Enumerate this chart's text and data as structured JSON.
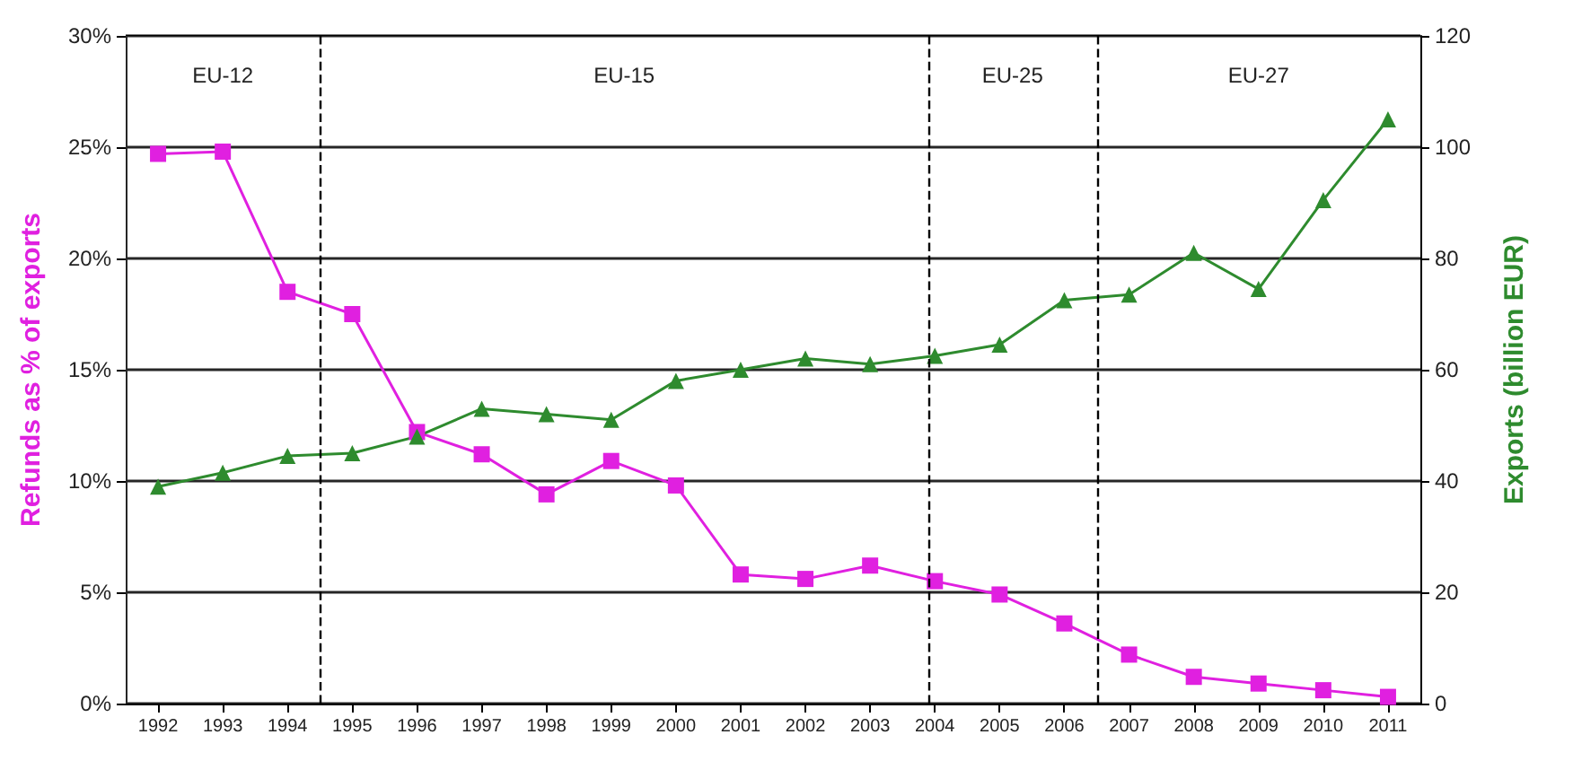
{
  "chart_data": {
    "type": "line",
    "ylabel": "Refunds as % of exports",
    "y2label": "Exports (billion EUR)",
    "x": [
      1992,
      1993,
      1994,
      1995,
      1996,
      1997,
      1998,
      1999,
      2000,
      2001,
      2002,
      2003,
      2004,
      2005,
      2006,
      2007,
      2008,
      2009,
      2010,
      2011
    ],
    "xlim": [
      1991.5,
      2011.5
    ],
    "xticks": [
      1992,
      1993,
      1994,
      1995,
      1996,
      1997,
      1998,
      1999,
      2000,
      2001,
      2002,
      2003,
      2004,
      2005,
      2006,
      2007,
      2008,
      2009,
      2010,
      2011
    ],
    "ylim": [
      0,
      30
    ],
    "yticks": [
      {
        "value": 0,
        "label": "0%"
      },
      {
        "value": 5,
        "label": "5%"
      },
      {
        "value": 10,
        "label": "10%"
      },
      {
        "value": 15,
        "label": "15%"
      },
      {
        "value": 20,
        "label": "20%"
      },
      {
        "value": 25,
        "label": "25%"
      },
      {
        "value": 30,
        "label": "30%"
      }
    ],
    "y2lim": [
      0,
      120
    ],
    "y2ticks": [
      0,
      20,
      40,
      60,
      80,
      100,
      120
    ],
    "series": [
      {
        "color": "#e020e0",
        "marker": "square",
        "values": [
          24.7,
          24.8,
          18.5,
          17.5,
          12.2,
          11.2,
          9.4,
          10.9,
          9.8,
          5.8,
          5.6,
          6.2,
          5.5,
          4.9,
          3.6,
          2.2,
          1.2,
          0.9,
          0.6,
          0.3
        ]
      },
      {
        "color": "#2e8b2e",
        "marker": "triangle",
        "axis": "y2",
        "values": [
          39,
          41.5,
          44.5,
          45,
          48,
          53,
          52,
          51,
          58,
          60,
          62,
          61,
          62.5,
          64.5,
          72.5,
          73.5,
          81,
          74.5,
          90.5,
          105
        ]
      }
    ],
    "ref_lines": [
      {
        "axis": "x",
        "value": 1994.5,
        "line_style": "dashed",
        "color": "#000000"
      },
      {
        "axis": "x",
        "value": 2003.9,
        "line_style": "dashed",
        "color": "#000000"
      },
      {
        "axis": "x",
        "value": 2006.5,
        "line_style": "dashed",
        "color": "#000000"
      }
    ],
    "bands": [
      {
        "axis": "x",
        "from": 1991.5,
        "to": 1994.5,
        "label": "EU-12",
        "color": "#ffffff"
      },
      {
        "axis": "x",
        "from": 1994.5,
        "to": 2003.9,
        "label": "EU-15",
        "color": "#ffffff"
      },
      {
        "axis": "x",
        "from": 2003.9,
        "to": 2006.5,
        "label": "EU-25",
        "color": "#ffffff"
      },
      {
        "axis": "x",
        "from": 2006.5,
        "to": 2011.5,
        "label": "EU-27",
        "color": "#ffffff"
      }
    ],
    "grid": "y"
  }
}
